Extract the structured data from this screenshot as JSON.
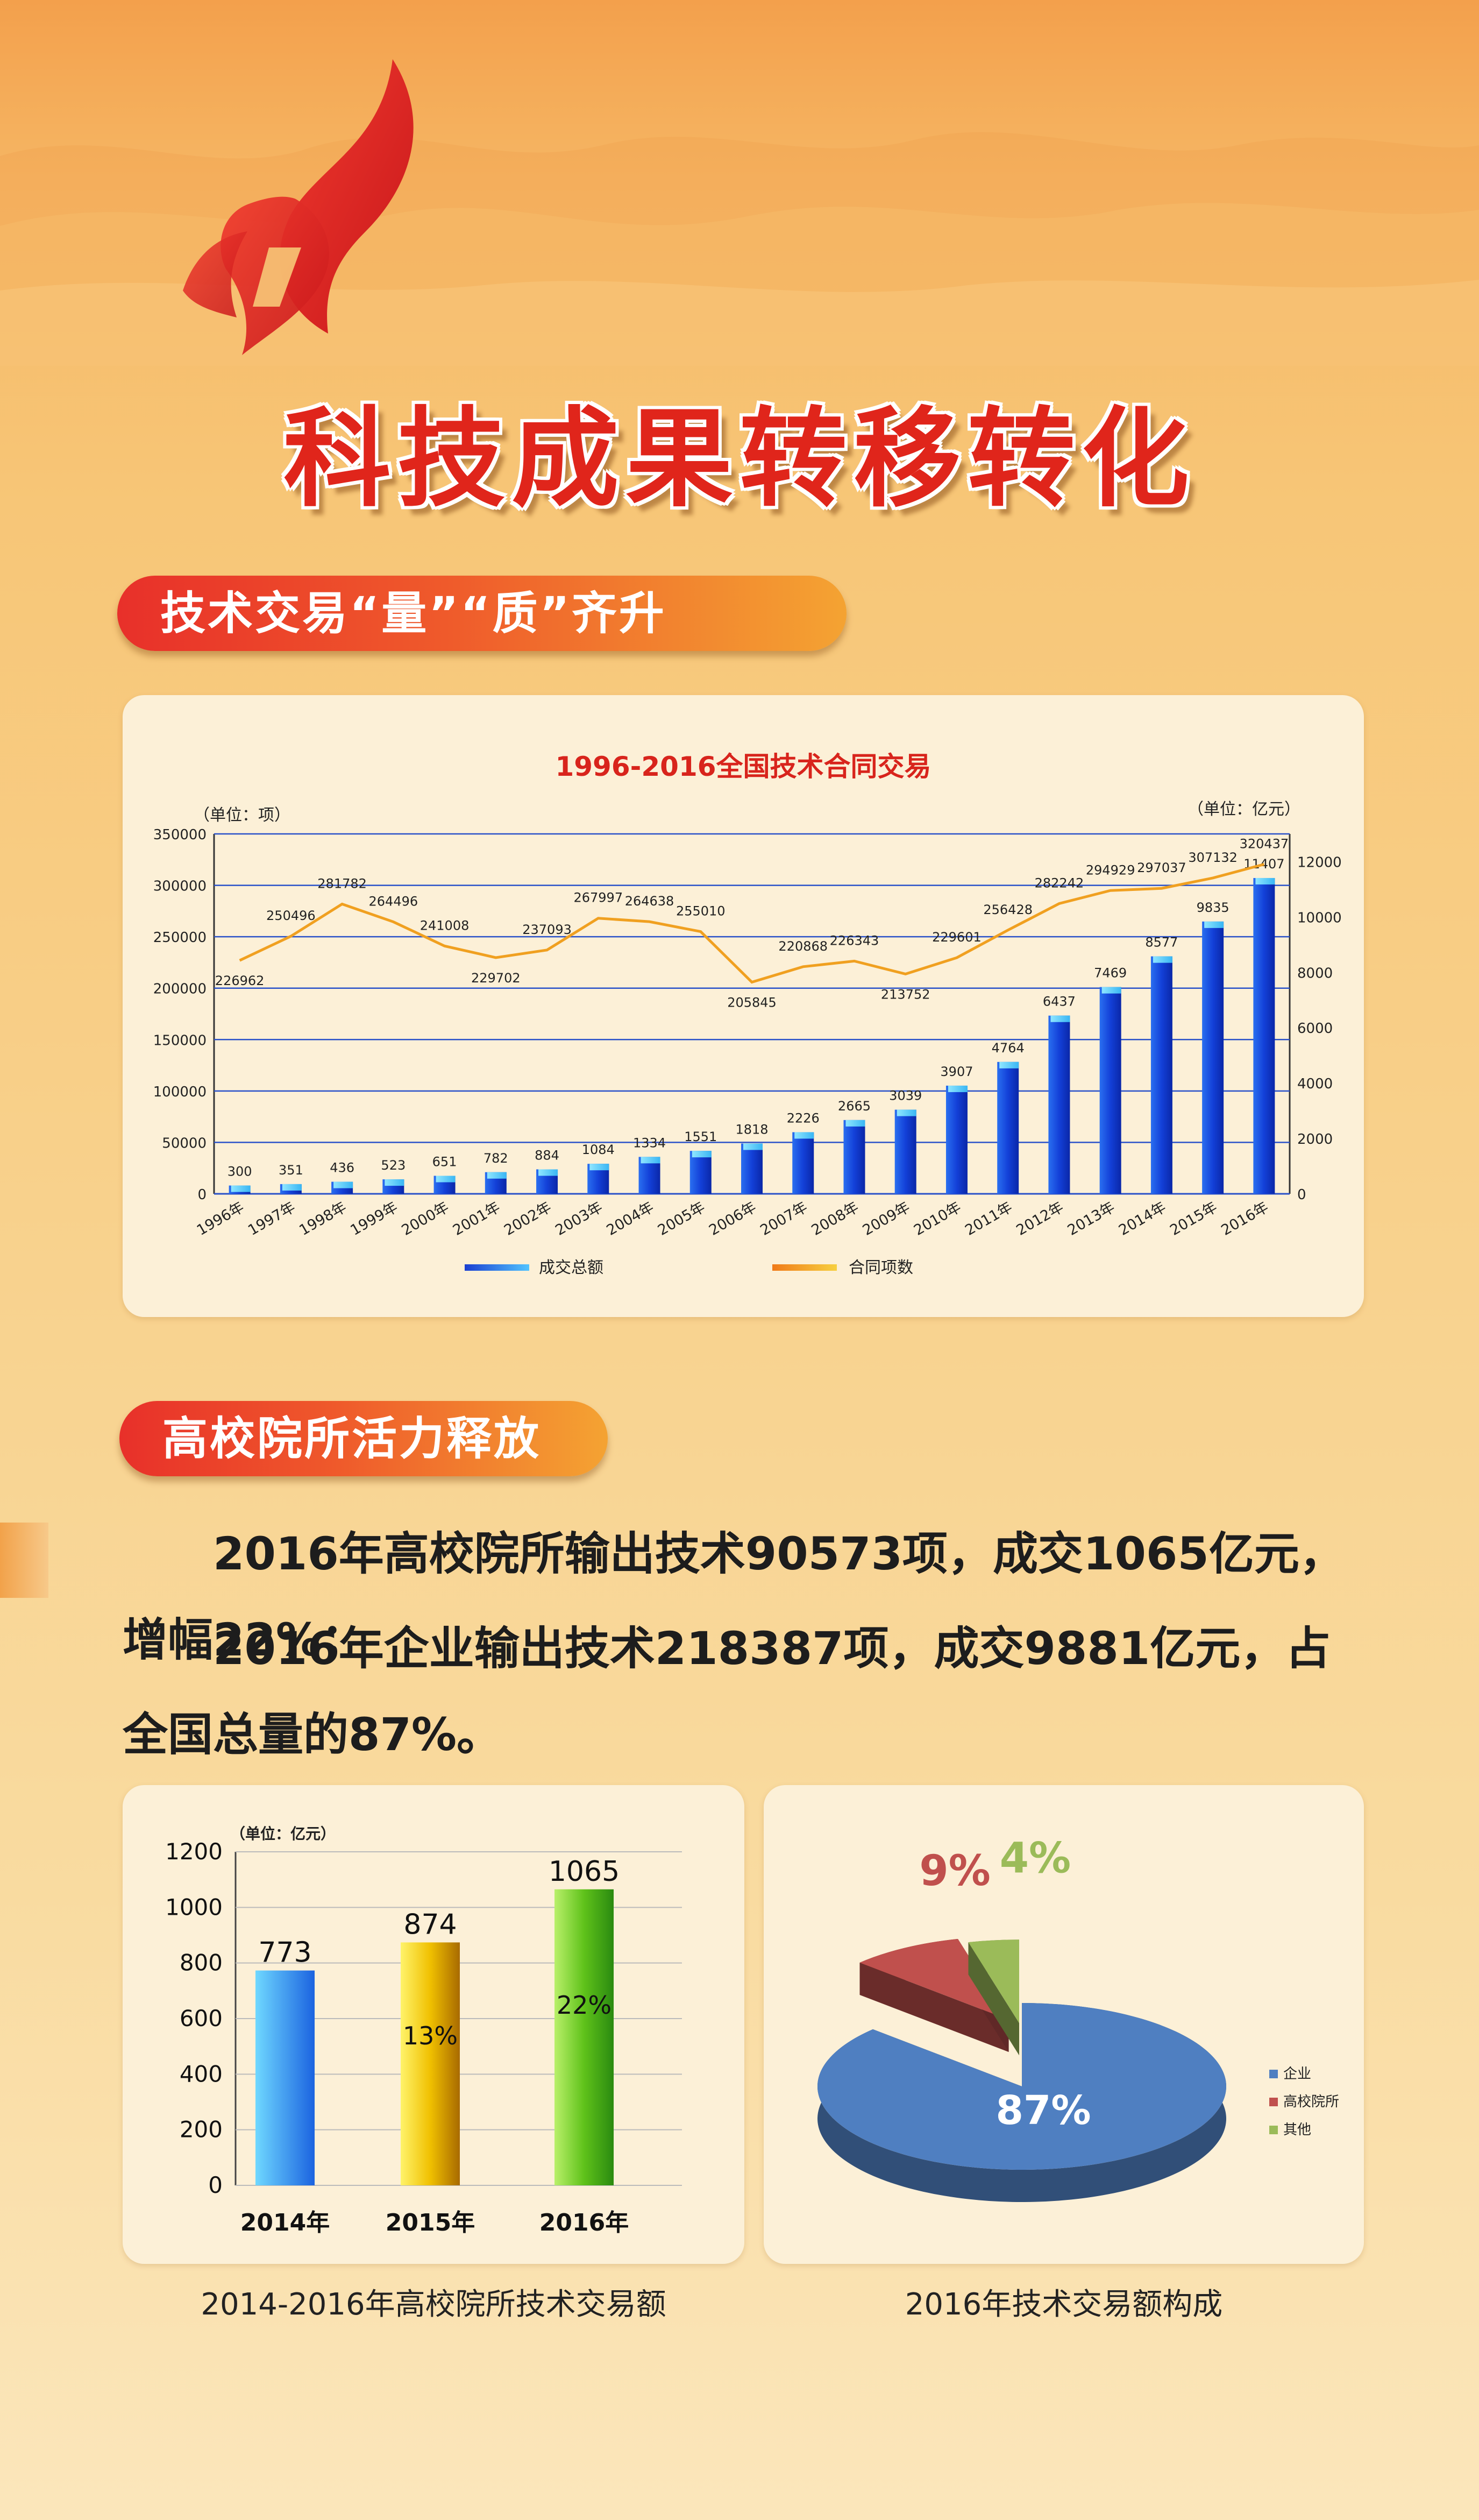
{
  "page_title": "科技成果转移转化",
  "section1_label": "技术交易“量”“质”齐升",
  "section2_label": "高校院所活力释放",
  "paragraph1": "2016年高校院所输出技术90573项，成交1065亿元，增幅22%；",
  "paragraph2": "2016年企业输出技术218387项，成交9881亿元，占全国总量的87%。",
  "caption_bar2": "2014-2016年高校院所技术交易额",
  "caption_pie": "2016年技术交易额构成",
  "colors": {
    "accent_red": "#e0251b",
    "bar_blue": "#1a3fd1",
    "line_orange": "#f0a020"
  },
  "chart_data": [
    {
      "type": "bar+line",
      "title": "1996-2016全国技术合同交易",
      "left_unit": "（单位：项）",
      "right_unit": "（单位：亿元）",
      "categories": [
        "1996年",
        "1997年",
        "1998年",
        "1999年",
        "2000年",
        "2001年",
        "2002年",
        "2003年",
        "2004年",
        "2005年",
        "2006年",
        "2007年",
        "2008年",
        "2009年",
        "2010年",
        "2011年",
        "2012年",
        "2013年",
        "2014年",
        "2015年",
        "2016年"
      ],
      "left_ticks": [
        "350000",
        "300000",
        "250000",
        "200000",
        "150000",
        "100000",
        "50000",
        "0"
      ],
      "right_ticks": [
        "12000",
        "10000",
        "8000",
        "6000",
        "4000",
        "2000",
        "0"
      ],
      "series": [
        {
          "name": "成交总额",
          "axis": "right",
          "values": [
            300,
            351,
            436,
            523,
            651,
            782,
            884,
            1084,
            1334,
            1551,
            1818,
            2226,
            2665,
            3039,
            3907,
            4764,
            6437,
            7469,
            8577,
            9835,
            11407
          ]
        },
        {
          "name": "合同项数",
          "axis": "left",
          "values": [
            226962,
            250496,
            281782,
            264496,
            241008,
            229702,
            237093,
            267997,
            264638,
            255010,
            205845,
            220868,
            226343,
            213752,
            229601,
            256428,
            282242,
            294929,
            297037,
            307132,
            320437
          ]
        }
      ],
      "ylim_left": [
        0,
        350000
      ],
      "ylim_right": [
        0,
        13000
      ],
      "grid": true,
      "legend": "bottom"
    },
    {
      "type": "bar",
      "unit": "（单位：亿元）",
      "categories": [
        "2014年",
        "2015年",
        "2016年"
      ],
      "values": [
        773,
        874,
        1065
      ],
      "value_labels": [
        "773",
        "874",
        "1065"
      ],
      "growth_labels": [
        "",
        "13%",
        "22%"
      ],
      "y_ticks": [
        "1200",
        "1000",
        "800",
        "600",
        "400",
        "200",
        "0"
      ],
      "ylim": [
        0,
        1200
      ],
      "grid": true
    },
    {
      "type": "pie",
      "slices": [
        {
          "name": "企业",
          "value": 87,
          "label": "87%",
          "color": "#4f7fc1"
        },
        {
          "name": "高校院所",
          "value": 9,
          "label": "9%",
          "color": "#c0504d"
        },
        {
          "name": "其他",
          "value": 4,
          "label": "4%",
          "color": "#9bbb59"
        }
      ],
      "legend": "right"
    }
  ]
}
